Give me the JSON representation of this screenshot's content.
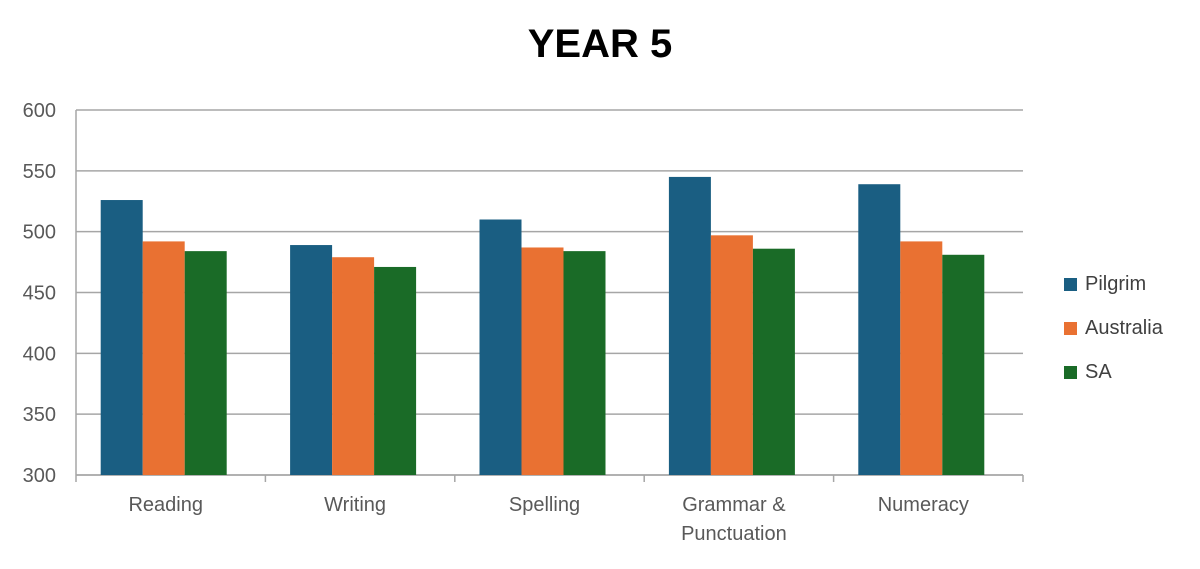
{
  "chart_data": {
    "type": "bar",
    "title": "YEAR 5",
    "categories": [
      "Reading",
      "Writing",
      "Spelling",
      "Grammar & Punctuation",
      "Numeracy"
    ],
    "category_lines": [
      [
        "Reading"
      ],
      [
        "Writing"
      ],
      [
        "Spelling"
      ],
      [
        "Grammar &",
        "Punctuation"
      ],
      [
        "Numeracy"
      ]
    ],
    "series": [
      {
        "name": "Pilgrim",
        "color": "#1a5e82",
        "values": [
          526,
          489,
          510,
          545,
          539
        ]
      },
      {
        "name": "Australia",
        "color": "#e97132",
        "values": [
          492,
          479,
          487,
          497,
          492
        ]
      },
      {
        "name": "SA",
        "color": "#1a6b27",
        "values": [
          484,
          471,
          484,
          486,
          481
        ]
      }
    ],
    "ylim": [
      300,
      600
    ],
    "yticks": [
      "300",
      "350",
      "400",
      "450",
      "500",
      "550",
      "600"
    ],
    "xlabel": "",
    "ylabel": "",
    "grid": true,
    "legend_position": "right"
  }
}
